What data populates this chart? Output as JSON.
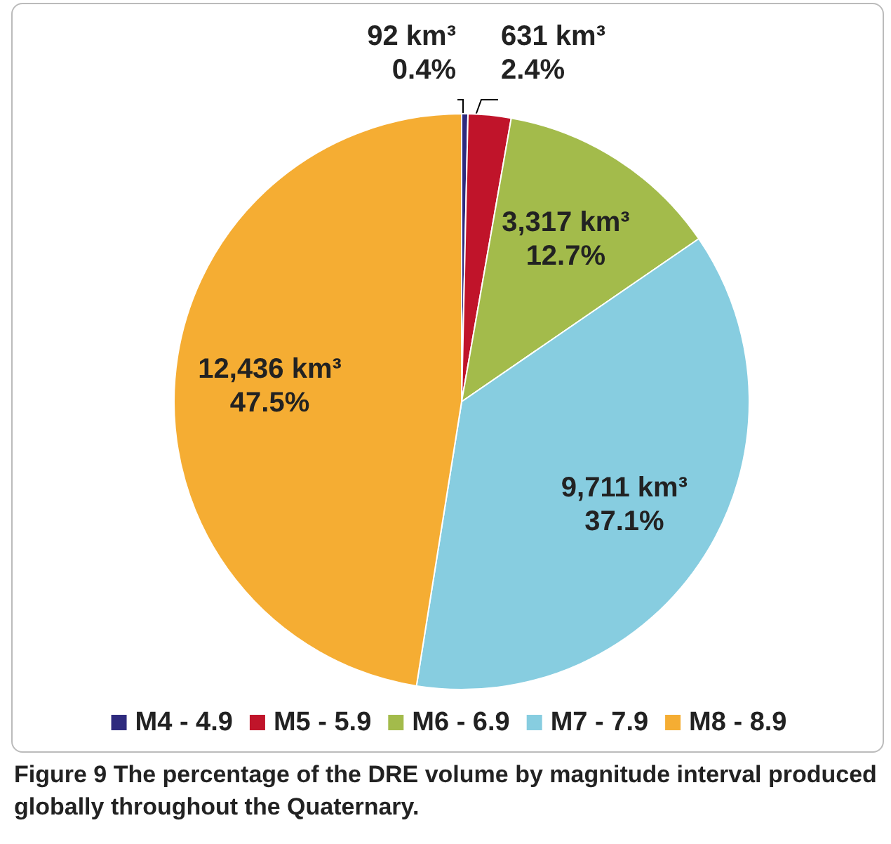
{
  "chart_data": {
    "type": "pie",
    "categories": [
      "M4 - 4.9",
      "M5 - 5.9",
      "M6 - 6.9",
      "M7 - 7.9",
      "M8 - 8.9"
    ],
    "values": [
      92,
      631,
      3317,
      9711,
      12436
    ],
    "value_labels": [
      "92 km³\n0.4%",
      "631 km³\n2.4%",
      "3,317 km³\n12.7%",
      "9,711 km³\n37.1%",
      "12,436 km³\n47.5%"
    ],
    "colors": [
      "#2e2a7e",
      "#c0142a",
      "#a3bb4b",
      "#87cde0",
      "#f5ad33"
    ],
    "legend": "bottom",
    "annotations": [
      "Figure 9 The percentage of the DRE volume by magnitude interval produced globally throughout the Quaternary."
    ]
  }
}
